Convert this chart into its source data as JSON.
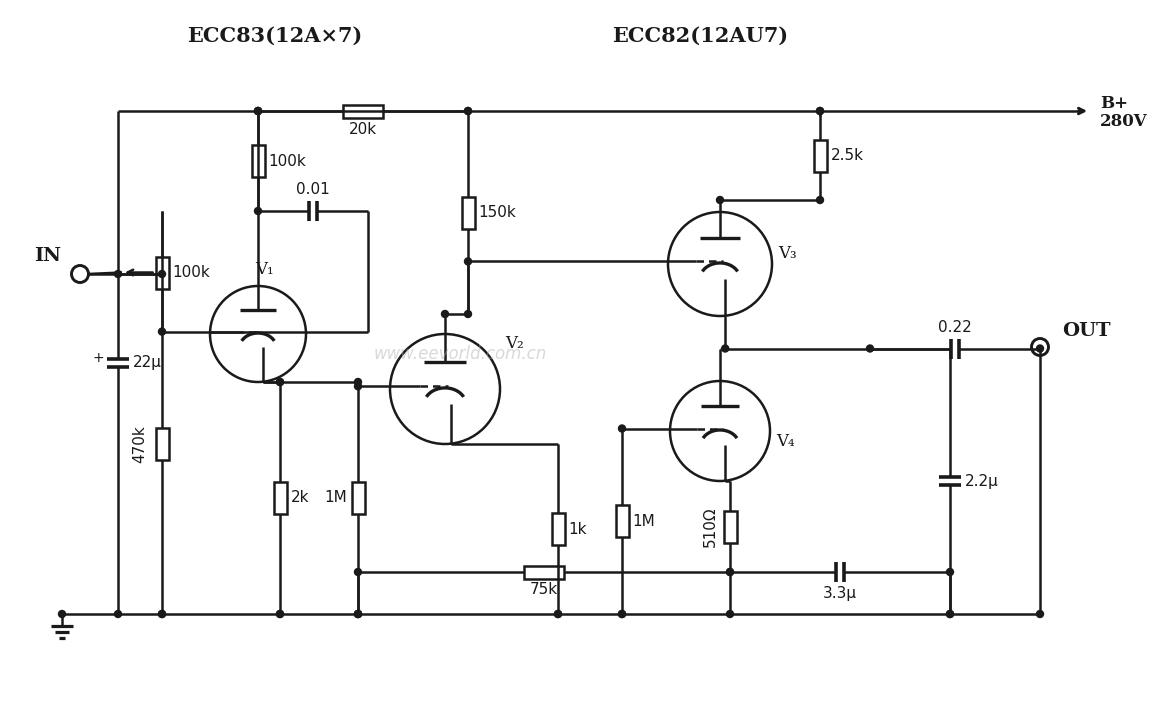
{
  "bg": "#ffffff",
  "lc": "#1a1a1a",
  "ecc83": "ECC83(12A×7)",
  "ecc82": "ECC82(12AU7)",
  "in_lbl": "IN",
  "out_lbl": "OUT",
  "bplus": "B+",
  "bvolt": "280V",
  "v1": "V₁",
  "v2": "V₂",
  "v3": "V₃",
  "v4": "V₄",
  "c22u": "22μ",
  "r20k": "20k",
  "r100k": "100k",
  "c001": "0.01",
  "r150k": "150k",
  "r100k_b": "100k",
  "r470k": "470k",
  "r2k": "2k",
  "r1m_a": "1M",
  "r1k": "1k",
  "r1m_b": "1M",
  "r25k": "2.5k",
  "c022": "0.22",
  "c22u_b": "2.2μ",
  "r510": "510Ω",
  "c33u": "3.3μ",
  "r75k": "75k",
  "watermark": "www.eevorld.com.cn",
  "fs": 12,
  "lw": 1.8
}
